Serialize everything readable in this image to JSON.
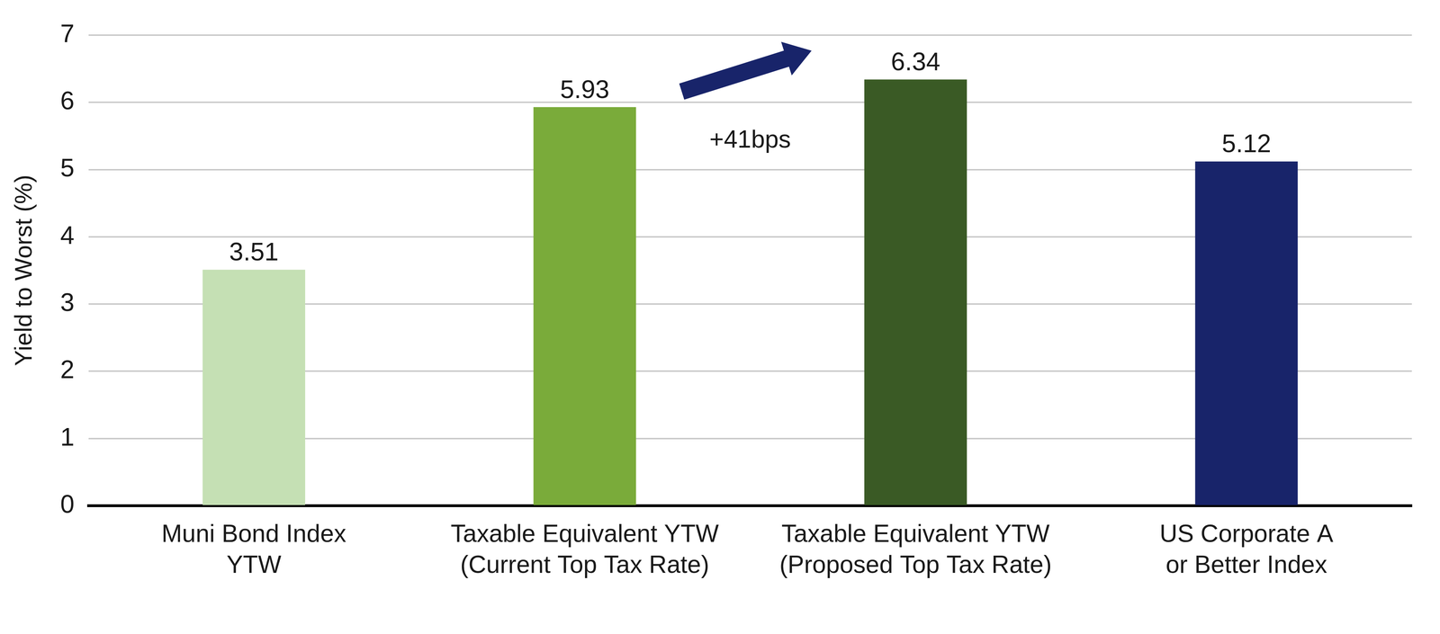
{
  "chart_data": {
    "type": "bar",
    "y_label": "Yield to Worst (%)",
    "categories": [
      [
        "Muni Bond Index",
        "YTW"
      ],
      [
        "Taxable Equivalent YTW",
        "(Current Top Tax Rate)"
      ],
      [
        "Taxable Equivalent YTW",
        "(Proposed Top Tax Rate)"
      ],
      [
        "US Corporate A",
        "or Better Index"
      ]
    ],
    "values": [
      3.51,
      5.93,
      6.34,
      5.12
    ],
    "colors": [
      "#c5e0b4",
      "#7aab3a",
      "#3a5a25",
      "#18246a"
    ],
    "ylim": [
      0,
      7
    ],
    "yticks": [
      0,
      1,
      2,
      3,
      4,
      5,
      6,
      7
    ],
    "grid": true,
    "data_labels": true,
    "annotations": [
      {
        "text": "+41bps"
      }
    ]
  }
}
